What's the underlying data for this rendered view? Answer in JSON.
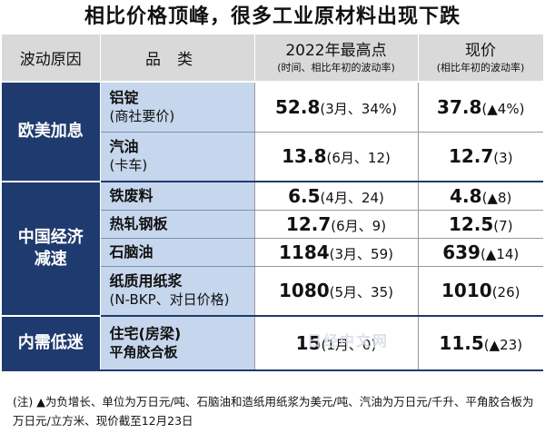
{
  "title": "相比价格顶峰，很多工业原材料出现下跌",
  "header": {
    "reason": "波动原因",
    "item": "品类",
    "peak_main": "2022年最高点",
    "peak_sub": "(时间、相比年初的波动率)",
    "current_main": "现价",
    "current_sub": "(相比年初的波动率)"
  },
  "groups": [
    {
      "reason_line1": "欧美加息",
      "reason_line2": ""
    },
    {
      "reason_line1": "中国经济",
      "reason_line2": "减速"
    },
    {
      "reason_line1": "内需低迷",
      "reason_line2": ""
    }
  ],
  "chart_data": {
    "type": "table",
    "title": "相比价格顶峰，很多工业原材料出现下跌",
    "columns": [
      "波动原因",
      "品类",
      "2022年最高点",
      "现价"
    ],
    "rows": [
      {
        "name": "铝锭",
        "name_sub": "(商社要价)",
        "peak": "52.8",
        "peak_paren": "(3月、34%)",
        "current": "37.8",
        "current_paren": "(▲4%)"
      },
      {
        "name": "汽油",
        "name_sub": "(卡车)",
        "peak": "13.8",
        "peak_paren": "(6月、12)",
        "current": "12.7",
        "current_paren": "(3)"
      },
      {
        "name": "铁废料",
        "name_sub": "",
        "peak": "6.5",
        "peak_paren": "(4月、24)",
        "current": "4.8",
        "current_paren": "(▲8)"
      },
      {
        "name": "热轧钢板",
        "name_sub": "",
        "peak": "12.7",
        "peak_paren": "(6月、9)",
        "current": "12.5",
        "current_paren": "(7)"
      },
      {
        "name": "石脑油",
        "name_sub": "",
        "peak": "1184",
        "peak_paren": "(3月、59)",
        "current": "639",
        "current_paren": "(▲14)"
      },
      {
        "name": "纸质用纸浆",
        "name_sub": "(N-BKP、对日价格)",
        "peak": "1080",
        "peak_paren": "(5月、35)",
        "current": "1010",
        "current_paren": "(26)"
      },
      {
        "name": "住宅(房梁)",
        "name_sub": "平角胶合板",
        "peak": "15",
        "peak_paren": "(1月、0)",
        "current": "11.5",
        "current_paren": "(▲23)"
      }
    ]
  },
  "note": "(注) ▲为负增长、单位为万日元/吨、石脑油和造纸用纸浆为美元/吨、汽油为万日元/千升、平角胶合板为万日元/立方米、现价截至12月23日",
  "watermark": "日经中文网"
}
